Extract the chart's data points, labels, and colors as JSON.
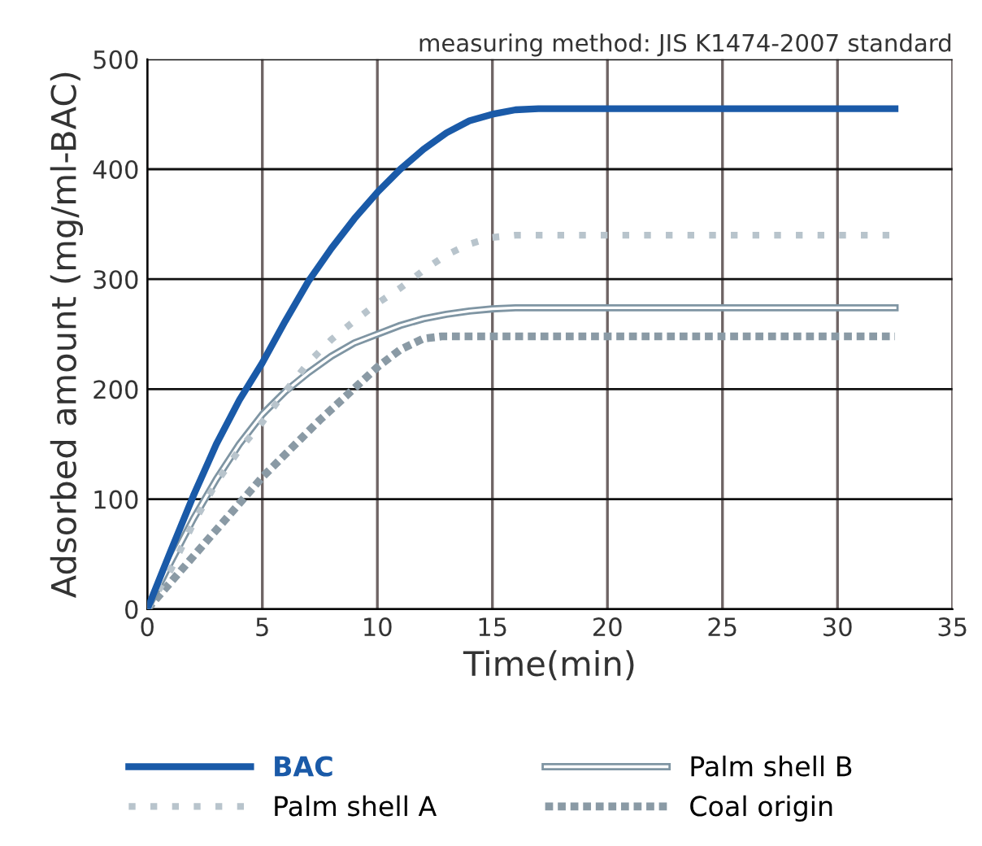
{
  "chart_data": {
    "type": "line",
    "xlabel": "Time(min)",
    "ylabel": "Adsorbed amount (mg/ml-BAC)",
    "annotations": [
      "measuring method: JIS K1474-2007 standard"
    ],
    "xlim": [
      0,
      35
    ],
    "xticks": [
      0,
      5,
      10,
      15,
      20,
      25,
      30,
      35
    ],
    "ylim": [
      0,
      500
    ],
    "yticks": [
      0,
      100,
      200,
      300,
      400,
      500
    ],
    "grid": true,
    "legend": "bottom",
    "marker": "none",
    "series": [
      {
        "name": "BAC",
        "color": "#1a5aa8",
        "line_style": "solid",
        "x": [
          0,
          1,
          2,
          3,
          4,
          5,
          6,
          7,
          8,
          9,
          10,
          11,
          12,
          13,
          14,
          15,
          16,
          17,
          32.5
        ],
        "values": [
          0,
          52,
          103,
          150,
          190,
          224,
          262,
          298,
          328,
          355,
          379,
          400,
          418,
          433,
          444,
          450,
          454,
          455,
          455
        ]
      },
      {
        "name": "Palm shell A",
        "color": "#b8c4cc",
        "line_style": "dotted",
        "x": [
          0,
          1,
          2,
          3,
          4,
          5,
          6,
          7,
          8,
          9,
          10,
          11,
          12,
          13,
          14,
          15,
          16,
          32.5
        ],
        "values": [
          0,
          35,
          78,
          115,
          145,
          170,
          198,
          224,
          245,
          262,
          278,
          292,
          308,
          322,
          332,
          338,
          340,
          340
        ]
      },
      {
        "name": "Palm shell B",
        "color": "#7f95a3",
        "line_style": "solid",
        "x": [
          0,
          1,
          2,
          3,
          4,
          5,
          6,
          7,
          8,
          9,
          10,
          11,
          12,
          13,
          14,
          15,
          16,
          32.5
        ],
        "values": [
          0,
          42,
          82,
          118,
          150,
          177,
          198,
          215,
          230,
          242,
          250,
          258,
          264,
          268,
          271,
          273,
          274,
          274
        ]
      },
      {
        "name": "Coal origin",
        "color": "#8a9aa5",
        "line_style": "dashed",
        "x": [
          0,
          2.5,
          5,
          7.5,
          10,
          11,
          12,
          12.8,
          32.5
        ],
        "values": [
          0,
          60,
          120,
          172,
          220,
          236,
          246,
          248,
          248
        ]
      }
    ]
  }
}
